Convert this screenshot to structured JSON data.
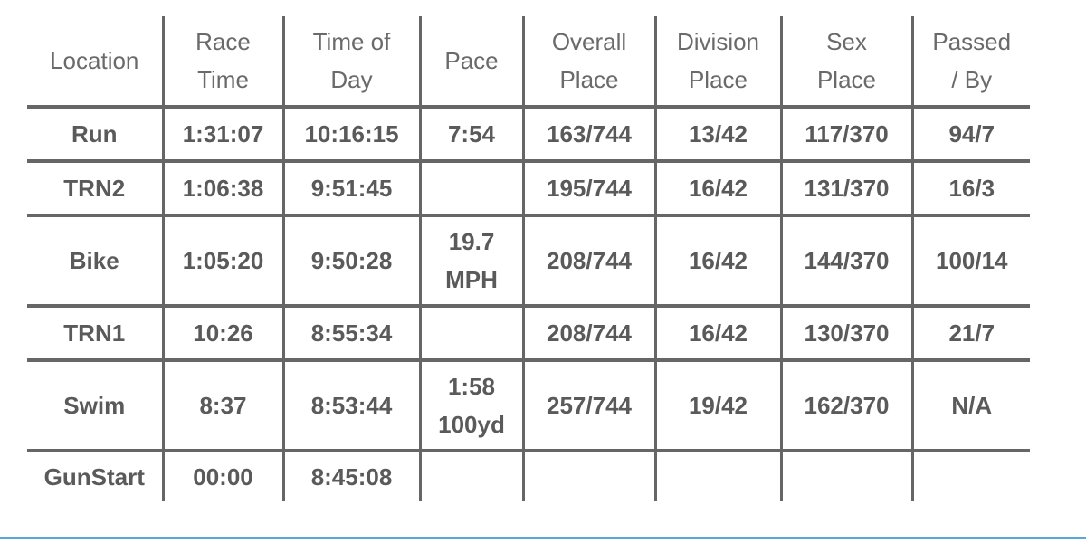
{
  "table": {
    "headers": [
      [
        "Location"
      ],
      [
        "Race",
        "Time"
      ],
      [
        "Time of",
        "Day"
      ],
      [
        "Pace"
      ],
      [
        "Overall",
        "Place"
      ],
      [
        "Division",
        "Place"
      ],
      [
        "Sex",
        "Place"
      ],
      [
        "Passed",
        "/ By"
      ]
    ],
    "rows": [
      {
        "location": "Run",
        "race_time": "1:31:07",
        "time_of_day": "10:16:15",
        "pace": [
          "7:54"
        ],
        "overall_place": "163/744",
        "division_place": "13/42",
        "sex_place": "117/370",
        "passed_by": "94/7"
      },
      {
        "location": "TRN2",
        "race_time": "1:06:38",
        "time_of_day": "9:51:45",
        "pace": [],
        "overall_place": "195/744",
        "division_place": "16/42",
        "sex_place": "131/370",
        "passed_by": "16/3"
      },
      {
        "location": "Bike",
        "race_time": "1:05:20",
        "time_of_day": "9:50:28",
        "pace": [
          "19.7",
          "MPH"
        ],
        "overall_place": "208/744",
        "division_place": "16/42",
        "sex_place": "144/370",
        "passed_by": "100/14"
      },
      {
        "location": "TRN1",
        "race_time": "10:26",
        "time_of_day": "8:55:34",
        "pace": [],
        "overall_place": "208/744",
        "division_place": "16/42",
        "sex_place": "130/370",
        "passed_by": "21/7"
      },
      {
        "location": "Swim",
        "race_time": "8:37",
        "time_of_day": "8:53:44",
        "pace": [
          "1:58",
          "100yd"
        ],
        "overall_place": "257/744",
        "division_place": "19/42",
        "sex_place": "162/370",
        "passed_by": "N/A"
      },
      {
        "location": "GunStart",
        "race_time": "00:00",
        "time_of_day": "8:45:08",
        "pace": [],
        "overall_place": "",
        "division_place": "",
        "sex_place": "",
        "passed_by": ""
      }
    ]
  },
  "colors": {
    "grid_lines": "#666666",
    "text": "#5a5a5a",
    "bottom_rule": "#56a9d8",
    "background": "#ffffff"
  }
}
